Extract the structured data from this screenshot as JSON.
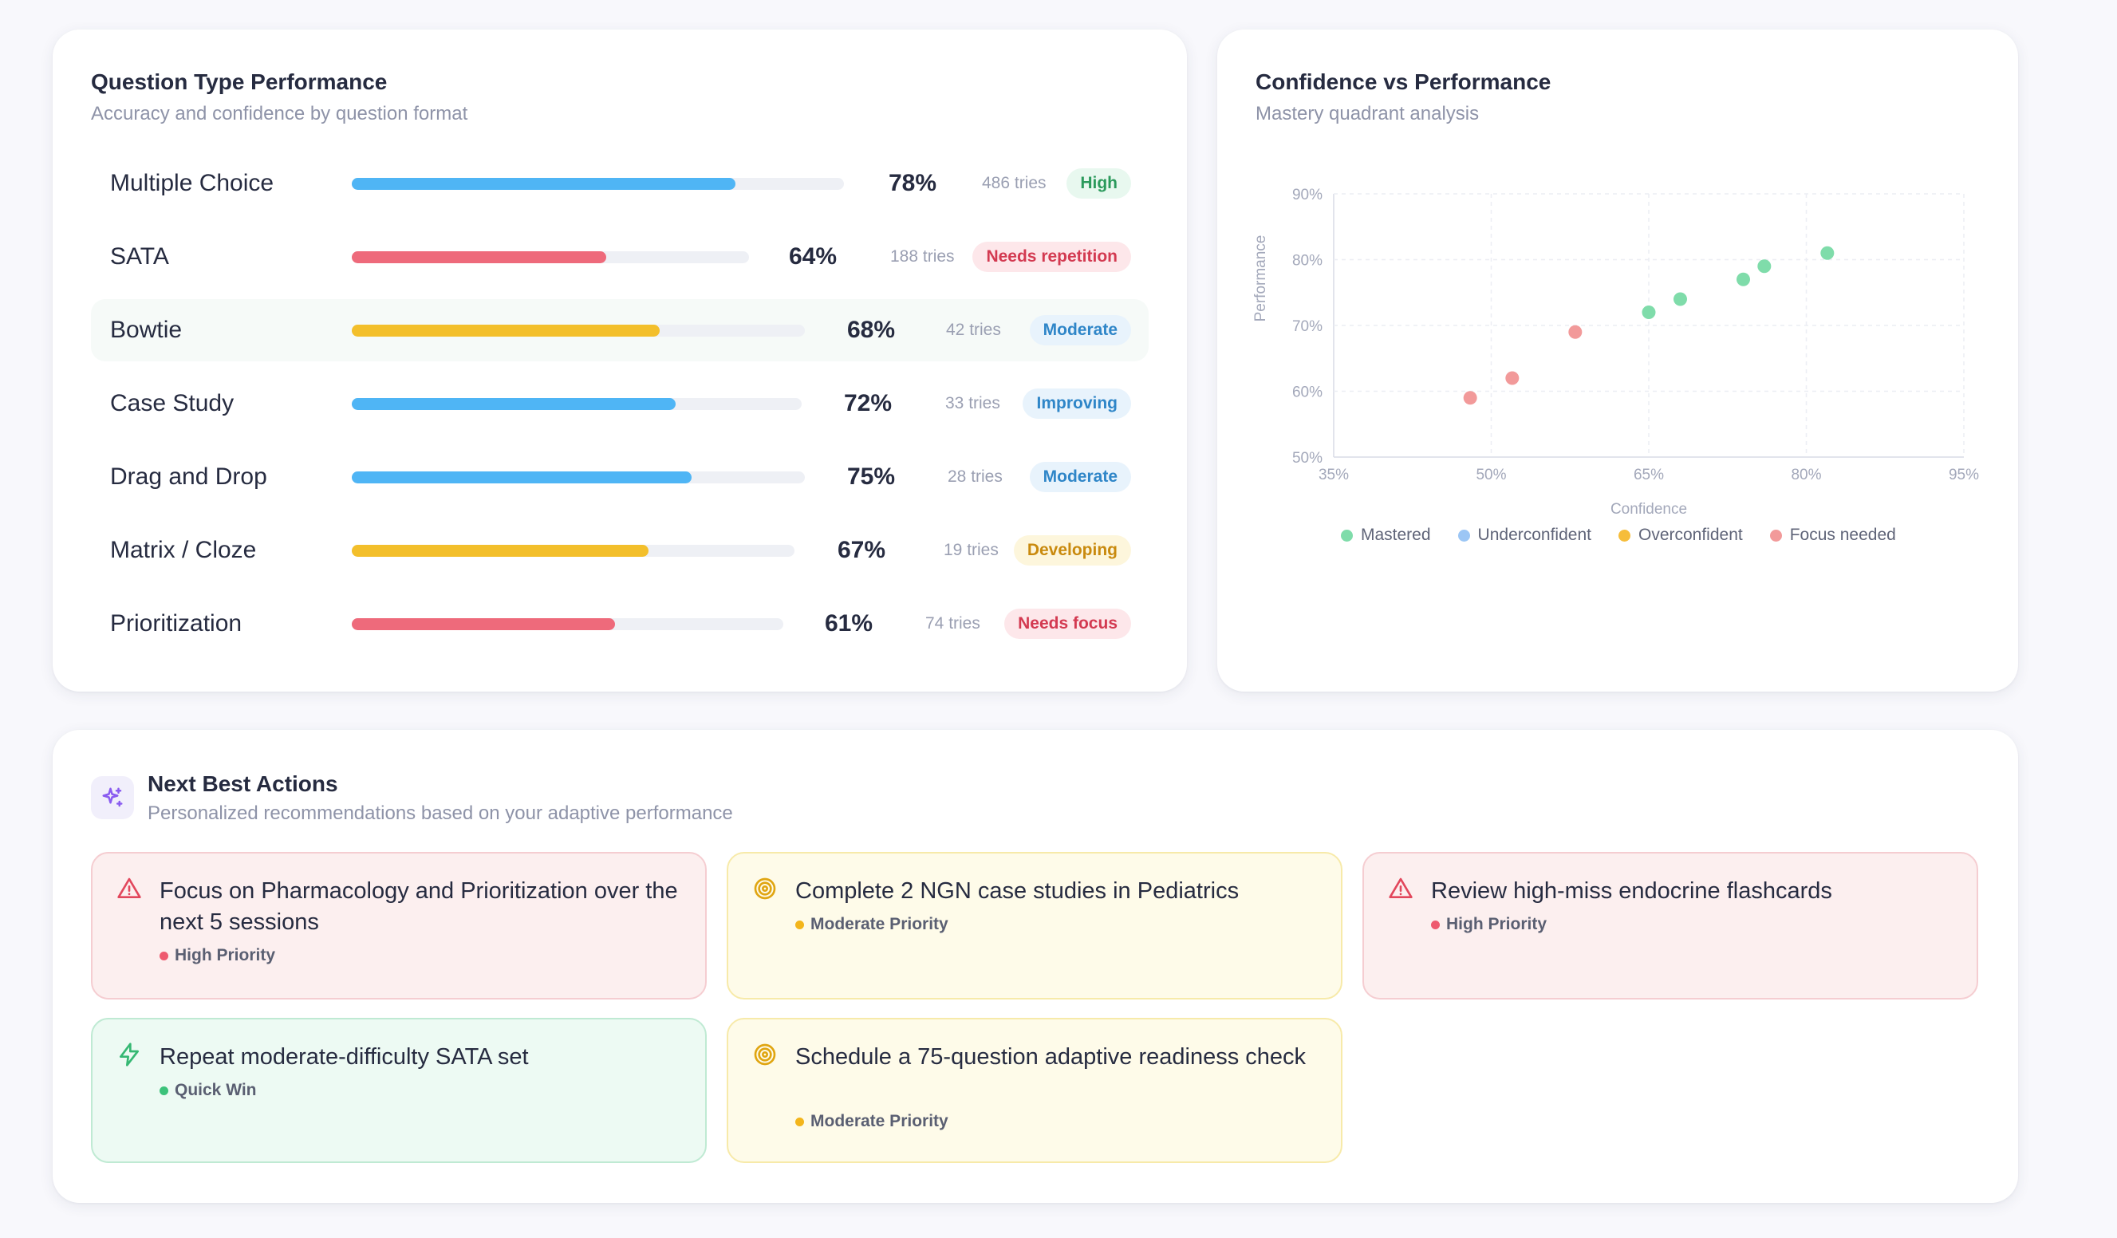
{
  "question_type_performance": {
    "title": "Question Type Performance",
    "subtitle": "Accuracy and confidence by question format",
    "rows": [
      {
        "name": "Multiple Choice",
        "percent": 78,
        "percent_label": "78%",
        "tries": "486 tries",
        "badge": "High",
        "bar_color": "#4fb5f5",
        "badge_bg": "#e8f8ef",
        "badge_fg": "#2b9a5c"
      },
      {
        "name": "SATA",
        "percent": 64,
        "percent_label": "64%",
        "tries": "188 tries",
        "badge": "Needs repetition",
        "bar_color": "#ee6a7b",
        "badge_bg": "#fde7ea",
        "badge_fg": "#d33a51"
      },
      {
        "name": "Bowtie",
        "percent": 68,
        "percent_label": "68%",
        "tries": "42 tries",
        "badge": "Moderate",
        "bar_color": "#f3bf2b",
        "badge_bg": "#e8f3fc",
        "badge_fg": "#2f86c8"
      },
      {
        "name": "Case Study",
        "percent": 72,
        "percent_label": "72%",
        "tries": "33 tries",
        "badge": "Improving",
        "bar_color": "#4fb5f5",
        "badge_bg": "#e8f3fc",
        "badge_fg": "#2f86c8"
      },
      {
        "name": "Drag and Drop",
        "percent": 75,
        "percent_label": "75%",
        "tries": "28 tries",
        "badge": "Moderate",
        "bar_color": "#4fb5f5",
        "badge_bg": "#e8f3fc",
        "badge_fg": "#2f86c8"
      },
      {
        "name": "Matrix / Cloze",
        "percent": 67,
        "percent_label": "67%",
        "tries": "19 tries",
        "badge": "Developing",
        "bar_color": "#f3bf2b",
        "badge_bg": "#fdf6dc",
        "badge_fg": "#c98a0e"
      },
      {
        "name": "Prioritization",
        "percent": 61,
        "percent_label": "61%",
        "tries": "74 tries",
        "badge": "Needs focus",
        "bar_color": "#ee6a7b",
        "badge_bg": "#fde7ea",
        "badge_fg": "#d33a51"
      }
    ]
  },
  "confidence_vs_performance": {
    "title": "Confidence vs Performance",
    "subtitle": "Mastery quadrant analysis"
  },
  "chart_data": {
    "type": "scatter",
    "title": "Confidence vs Performance",
    "subtitle": "Mastery quadrant analysis",
    "xlabel": "Confidence",
    "ylabel": "Performance",
    "xlim": [
      35,
      95
    ],
    "ylim": [
      50,
      90
    ],
    "x_ticks": [
      "35%",
      "50%",
      "65%",
      "80%",
      "95%"
    ],
    "y_ticks": [
      "50%",
      "60%",
      "70%",
      "80%",
      "90%"
    ],
    "x_tick_values": [
      35,
      50,
      65,
      80,
      95
    ],
    "y_tick_values": [
      50,
      60,
      70,
      80,
      90
    ],
    "grid": true,
    "legend_position": "bottom",
    "legend": [
      {
        "name": "Mastered",
        "color": "#7fdcaa"
      },
      {
        "name": "Underconfident",
        "color": "#9cc6f5"
      },
      {
        "name": "Overconfident",
        "color": "#f6bd3a"
      },
      {
        "name": "Focus needed",
        "color": "#f29a9a"
      }
    ],
    "series": [
      {
        "name": "Mastered",
        "color": "#7fdcaa",
        "points": [
          [
            65,
            72
          ],
          [
            68,
            74
          ],
          [
            74,
            77
          ],
          [
            76,
            79
          ],
          [
            82,
            81
          ]
        ]
      },
      {
        "name": "Focus needed",
        "color": "#f29a9a",
        "points": [
          [
            48,
            59
          ],
          [
            52,
            62
          ],
          [
            58,
            69
          ]
        ]
      }
    ]
  },
  "next_best_actions": {
    "title": "Next Best Actions",
    "subtitle": "Personalized recommendations based on your adaptive performance",
    "actions": [
      {
        "text": "Focus on Pharmacology and Prioritization over the next 5 sessions",
        "priority": "High Priority",
        "icon": "alert-triangle-icon",
        "tone": "red",
        "dot_color": "#ee5a6f"
      },
      {
        "text": "Complete 2 NGN case studies in Pediatrics",
        "priority": "Moderate Priority",
        "icon": "target-icon",
        "tone": "yellow",
        "dot_color": "#f3b51b"
      },
      {
        "text": "Review high-miss endocrine flashcards",
        "priority": "High Priority",
        "icon": "alert-triangle-icon",
        "tone": "red",
        "dot_color": "#ee5a6f"
      },
      {
        "text": "Repeat moderate-difficulty SATA set",
        "priority": "Quick Win",
        "icon": "lightning-icon",
        "tone": "green",
        "dot_color": "#3cc27a"
      },
      {
        "text": "Schedule a 75-question adaptive readiness check",
        "priority": "Moderate Priority",
        "icon": "target-icon",
        "tone": "yellow",
        "dot_color": "#f3b51b"
      }
    ]
  }
}
